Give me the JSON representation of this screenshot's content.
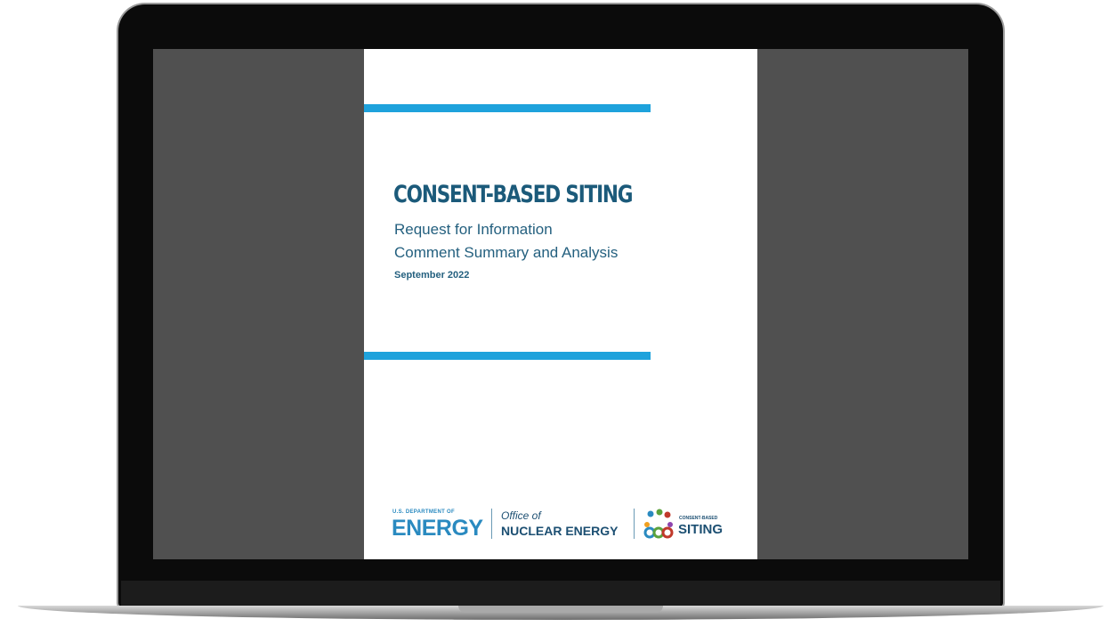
{
  "document": {
    "title": "CONSENT-BASED SITING",
    "subtitle_lines": [
      "Request for Information",
      "Comment Summary and Analysis"
    ],
    "date": "September 2022",
    "logos": {
      "doe_small": "U.S. DEPARTMENT OF",
      "doe_big": "ENERGY",
      "office_of": "Office of",
      "office_name": "NUCLEAR ENERGY",
      "cbs_small": "CONSENT-BASED",
      "cbs_big": "SITING"
    }
  }
}
